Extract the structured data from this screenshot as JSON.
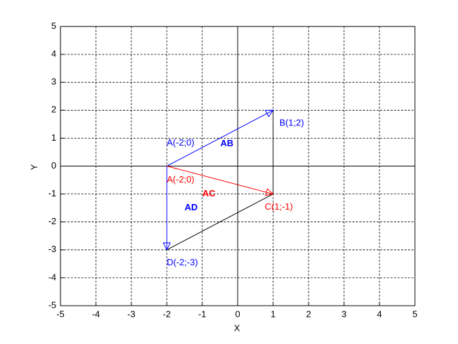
{
  "chart_data": {
    "type": "vector",
    "xlabel": "X",
    "ylabel": "Y",
    "xlim": [
      -5,
      5
    ],
    "ylim": [
      -5,
      5
    ],
    "xticks": [
      -5,
      -4,
      -3,
      -2,
      -1,
      0,
      1,
      2,
      3,
      4,
      5
    ],
    "yticks": [
      -5,
      -4,
      -3,
      -2,
      -1,
      0,
      1,
      2,
      3,
      4,
      5
    ],
    "grid": true,
    "vectors": [
      {
        "name": "AB",
        "color": "#0000ff",
        "x": [
          -2,
          1
        ],
        "y": [
          0,
          2
        ]
      },
      {
        "name": "AC",
        "color": "#ff0000",
        "x": [
          -2,
          1
        ],
        "y": [
          0,
          -1
        ]
      },
      {
        "name": "AD",
        "color": "#0000ff",
        "x": [
          -2,
          -2
        ],
        "y": [
          0,
          -3
        ]
      }
    ],
    "segments": [
      {
        "color": "#000000",
        "x": [
          1,
          1
        ],
        "y": [
          2,
          -1
        ]
      },
      {
        "color": "#000000",
        "x": [
          1,
          -2
        ],
        "y": [
          -1,
          -3
        ]
      }
    ],
    "points": [
      {
        "label": "A(-2;0)",
        "color": "#0000ff",
        "x": -2,
        "y": 0
      },
      {
        "label": "B(1;2)",
        "color": "#0000ff",
        "x": 1,
        "y": 2
      },
      {
        "label": "A(-2;0)",
        "color": "#ff0000",
        "x": -2,
        "y": 0
      },
      {
        "label": "C(1;-1)",
        "color": "#ff0000",
        "x": 1,
        "y": -1
      },
      {
        "label": "D(-2;-3)",
        "color": "#0000ff",
        "x": -2,
        "y": -3
      }
    ]
  }
}
